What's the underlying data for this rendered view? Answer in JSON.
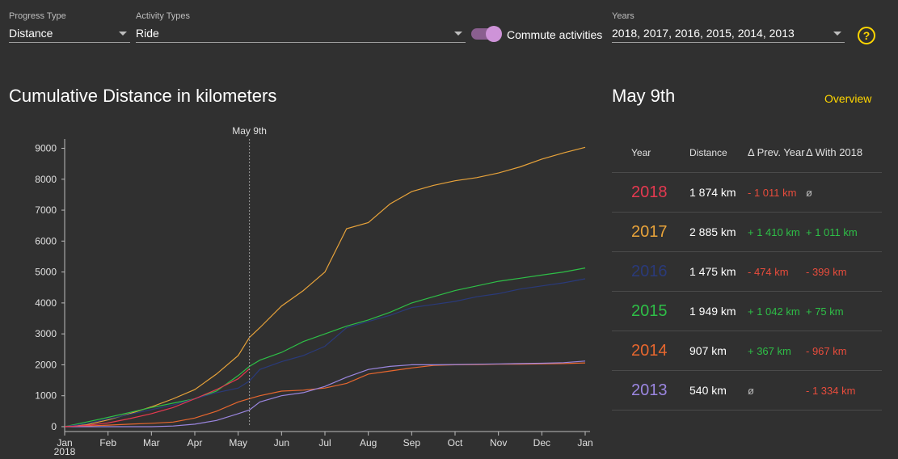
{
  "filters": {
    "progress_type": {
      "label": "Progress Type",
      "value": "Distance"
    },
    "activity_types": {
      "label": "Activity Types",
      "value": "Ride"
    },
    "commute": {
      "label": "Commute activities",
      "enabled": true
    },
    "years": {
      "label": "Years",
      "value": "2018, 2017, 2016, 2015, 2014, 2013"
    },
    "help_symbol": "?"
  },
  "chart_title": "Cumulative Distance in kilometers",
  "panel": {
    "title": "May 9th",
    "overview_link": "Overview",
    "headers": {
      "year": "Year",
      "distance": "Distance",
      "prev": "Δ Prev. Year",
      "with": "Δ With 2018"
    },
    "rows": [
      {
        "year": "2018",
        "color": "#e53950",
        "distance": "1 874 km",
        "prev": "- 1 011 km",
        "prev_kind": "neg",
        "with": "ø",
        "with_kind": "neutral"
      },
      {
        "year": "2017",
        "color": "#e8a33a",
        "distance": "2 885 km",
        "prev": "+ 1 410 km",
        "prev_kind": "pos",
        "with": "+ 1 011 km",
        "with_kind": "pos"
      },
      {
        "year": "2016",
        "color": "#2a3a7a",
        "distance": "1 475 km",
        "prev": "- 474 km",
        "prev_kind": "neg",
        "with": "- 399 km",
        "with_kind": "neg"
      },
      {
        "year": "2015",
        "color": "#2ebf47",
        "distance": "1 949 km",
        "prev": "+ 1 042 km",
        "prev_kind": "pos",
        "with": "+ 75 km",
        "with_kind": "pos"
      },
      {
        "year": "2014",
        "color": "#e8672e",
        "distance": "907 km",
        "prev": "+ 367 km",
        "prev_kind": "pos",
        "with": "- 967 km",
        "with_kind": "neg"
      },
      {
        "year": "2013",
        "color": "#9b86e0",
        "distance": "540 km",
        "prev": "ø",
        "prev_kind": "neutral",
        "with": "- 1 334 km",
        "with_kind": "neg"
      }
    ]
  },
  "chart_data": {
    "type": "line",
    "title": "Cumulative Distance in kilometers",
    "xlabel": "",
    "ylabel": "",
    "x_ticks": [
      "Jan\n2018",
      "Feb",
      "Mar",
      "Apr",
      "May",
      "Jun",
      "Jul",
      "Aug",
      "Sep",
      "Oct",
      "Nov",
      "Dec",
      "Jan"
    ],
    "x_months": [
      0,
      1,
      2,
      3,
      4,
      5,
      6,
      7,
      8,
      9,
      10,
      11,
      12
    ],
    "y_ticks": [
      0,
      1000,
      2000,
      3000,
      4000,
      5000,
      6000,
      7000,
      8000,
      9000
    ],
    "ylim": [
      0,
      9300
    ],
    "xlim": [
      0,
      12
    ],
    "marker": {
      "label": "May 9th",
      "x": 4.26
    },
    "grid": false,
    "legend": "none",
    "series": [
      {
        "color": "#e8a33a",
        "points": [
          [
            0,
            0
          ],
          [
            0.5,
            60
          ],
          [
            1,
            220
          ],
          [
            1.5,
            420
          ],
          [
            2,
            640
          ],
          [
            2.5,
            900
          ],
          [
            3,
            1200
          ],
          [
            3.5,
            1700
          ],
          [
            4,
            2300
          ],
          [
            4.26,
            2885
          ],
          [
            4.5,
            3200
          ],
          [
            5,
            3900
          ],
          [
            5.5,
            4400
          ],
          [
            6,
            5000
          ],
          [
            6.5,
            6400
          ],
          [
            7,
            6600
          ],
          [
            7.5,
            7200
          ],
          [
            8,
            7600
          ],
          [
            8.5,
            7800
          ],
          [
            9,
            7950
          ],
          [
            9.5,
            8050
          ],
          [
            10,
            8200
          ],
          [
            10.5,
            8400
          ],
          [
            11,
            8650
          ],
          [
            11.5,
            8850
          ],
          [
            12,
            9030
          ]
        ]
      },
      {
        "color": "#2ebf47",
        "points": [
          [
            0,
            0
          ],
          [
            0.5,
            150
          ],
          [
            1,
            300
          ],
          [
            1.5,
            460
          ],
          [
            2,
            620
          ],
          [
            2.5,
            760
          ],
          [
            3,
            900
          ],
          [
            3.5,
            1150
          ],
          [
            4,
            1650
          ],
          [
            4.26,
            1949
          ],
          [
            4.5,
            2150
          ],
          [
            5,
            2400
          ],
          [
            5.5,
            2750
          ],
          [
            6,
            3000
          ],
          [
            6.5,
            3250
          ],
          [
            7,
            3450
          ],
          [
            7.5,
            3700
          ],
          [
            8,
            4000
          ],
          [
            8.5,
            4200
          ],
          [
            9,
            4400
          ],
          [
            9.5,
            4550
          ],
          [
            10,
            4700
          ],
          [
            10.5,
            4800
          ],
          [
            11,
            4900
          ],
          [
            11.5,
            5000
          ],
          [
            12,
            5130
          ]
        ]
      },
      {
        "color": "#2a3a7a",
        "points": [
          [
            0,
            0
          ],
          [
            0.5,
            100
          ],
          [
            1,
            250
          ],
          [
            1.5,
            400
          ],
          [
            2,
            550
          ],
          [
            2.5,
            700
          ],
          [
            3,
            900
          ],
          [
            3.5,
            1100
          ],
          [
            4,
            1250
          ],
          [
            4.26,
            1475
          ],
          [
            4.5,
            1850
          ],
          [
            5,
            2100
          ],
          [
            5.5,
            2300
          ],
          [
            6,
            2600
          ],
          [
            6.5,
            3200
          ],
          [
            7,
            3400
          ],
          [
            7.5,
            3600
          ],
          [
            8,
            3850
          ],
          [
            8.5,
            3950
          ],
          [
            9,
            4050
          ],
          [
            9.5,
            4200
          ],
          [
            10,
            4300
          ],
          [
            10.5,
            4450
          ],
          [
            11,
            4550
          ],
          [
            11.5,
            4650
          ],
          [
            12,
            4780
          ]
        ]
      },
      {
        "color": "#e8672e",
        "points": [
          [
            0,
            0
          ],
          [
            0.5,
            20
          ],
          [
            1,
            50
          ],
          [
            1.5,
            80
          ],
          [
            2,
            110
          ],
          [
            2.5,
            150
          ],
          [
            3,
            280
          ],
          [
            3.5,
            500
          ],
          [
            4,
            800
          ],
          [
            4.26,
            907
          ],
          [
            4.5,
            1000
          ],
          [
            5,
            1150
          ],
          [
            5.5,
            1180
          ],
          [
            6,
            1250
          ],
          [
            6.5,
            1400
          ],
          [
            7,
            1700
          ],
          [
            7.5,
            1800
          ],
          [
            8,
            1900
          ],
          [
            8.5,
            1980
          ],
          [
            9,
            2000
          ],
          [
            9.5,
            2010
          ],
          [
            10,
            2020
          ],
          [
            10.5,
            2020
          ],
          [
            11,
            2030
          ],
          [
            11.5,
            2040
          ],
          [
            12,
            2060
          ]
        ]
      },
      {
        "color": "#9b86e0",
        "points": [
          [
            0,
            0
          ],
          [
            0.5,
            0
          ],
          [
            1,
            0
          ],
          [
            1.5,
            0
          ],
          [
            2,
            0
          ],
          [
            2.5,
            20
          ],
          [
            3,
            80
          ],
          [
            3.5,
            200
          ],
          [
            4,
            420
          ],
          [
            4.26,
            540
          ],
          [
            4.5,
            800
          ],
          [
            5,
            1000
          ],
          [
            5.5,
            1100
          ],
          [
            6,
            1300
          ],
          [
            6.5,
            1600
          ],
          [
            7,
            1850
          ],
          [
            7.5,
            1950
          ],
          [
            8,
            2000
          ],
          [
            8.5,
            2000
          ],
          [
            9,
            2010
          ],
          [
            9.5,
            2020
          ],
          [
            10,
            2030
          ],
          [
            10.5,
            2040
          ],
          [
            11,
            2050
          ],
          [
            11.5,
            2070
          ],
          [
            12,
            2120
          ]
        ]
      },
      {
        "color": "#e53950",
        "points": [
          [
            0,
            0
          ],
          [
            0.5,
            40
          ],
          [
            1,
            120
          ],
          [
            1.5,
            260
          ],
          [
            2,
            420
          ],
          [
            2.5,
            620
          ],
          [
            3,
            900
          ],
          [
            3.5,
            1200
          ],
          [
            4,
            1550
          ],
          [
            4.26,
            1874
          ]
        ]
      }
    ]
  }
}
